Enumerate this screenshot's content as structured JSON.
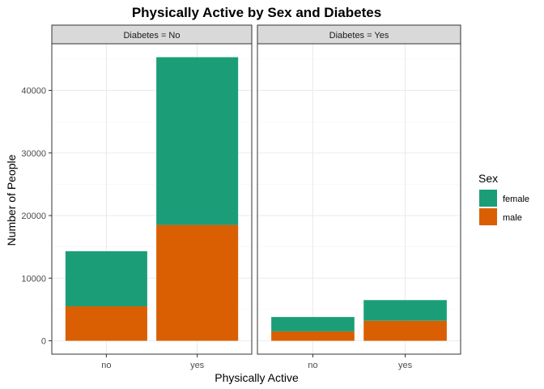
{
  "chart_data": {
    "type": "bar",
    "stacked": true,
    "title": "Physically Active by Sex and Diabetes",
    "xlabel": "Physically Active",
    "ylabel": "Number of People",
    "categories": [
      "no",
      "yes"
    ],
    "ylim": [
      0,
      47500
    ],
    "yticks": [
      0,
      10000,
      20000,
      30000,
      40000
    ],
    "ytick_labels": [
      "0",
      "10000",
      "20000",
      "30000",
      "40000"
    ],
    "grid": true,
    "legend": {
      "title": "Sex",
      "placement": "right"
    },
    "colors": {
      "female": "#1b9e77",
      "male": "#d95f02"
    },
    "facets": [
      {
        "label": "Diabetes = No",
        "series": [
          {
            "name": "male",
            "values": [
              5500,
              18500
            ]
          },
          {
            "name": "female",
            "values": [
              8800,
              26800
            ]
          }
        ]
      },
      {
        "label": "Diabetes = Yes",
        "series": [
          {
            "name": "male",
            "values": [
              1500,
              3200
            ]
          },
          {
            "name": "female",
            "values": [
              2300,
              3300
            ]
          }
        ]
      }
    ]
  }
}
